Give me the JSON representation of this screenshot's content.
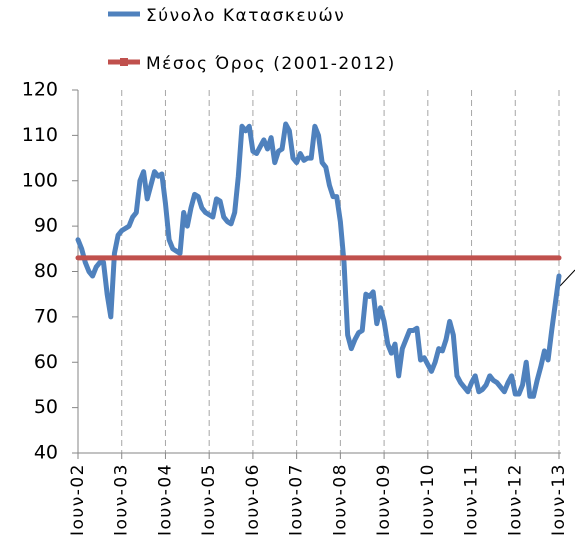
{
  "chart_data": {
    "type": "line",
    "categories": [
      "Ιουν-02",
      null,
      null,
      null,
      null,
      null,
      null,
      null,
      null,
      null,
      null,
      null,
      "Ιουν-03",
      null,
      null,
      null,
      null,
      null,
      null,
      null,
      null,
      null,
      null,
      null,
      "Ιουν-04",
      null,
      null,
      null,
      null,
      null,
      null,
      null,
      null,
      null,
      null,
      null,
      "Ιουν-05",
      null,
      null,
      null,
      null,
      null,
      null,
      null,
      null,
      null,
      null,
      null,
      "Ιουν-06",
      null,
      null,
      null,
      null,
      null,
      null,
      null,
      null,
      null,
      null,
      null,
      "Ιουν-07",
      null,
      null,
      null,
      null,
      null,
      null,
      null,
      null,
      null,
      null,
      null,
      "Ιουν-08",
      null,
      null,
      null,
      null,
      null,
      null,
      null,
      null,
      null,
      null,
      null,
      "Ιουν-09",
      null,
      null,
      null,
      null,
      null,
      null,
      null,
      null,
      null,
      null,
      null,
      "Ιουν-10",
      null,
      null,
      null,
      null,
      null,
      null,
      null,
      null,
      null,
      null,
      null,
      "Ιουν-11",
      null,
      null,
      null,
      null,
      null,
      null,
      null,
      null,
      null,
      null,
      null,
      "Ιουν-12",
      null,
      null,
      null,
      null,
      null,
      null,
      null,
      null,
      null,
      null,
      null,
      "Ιουν-13"
    ],
    "series": [
      {
        "name": "Σύνολο Κατασκευών",
        "color": "#4f81bd",
        "values": [
          87,
          85,
          82,
          80,
          79,
          81,
          82,
          82,
          75,
          70,
          84,
          88,
          89,
          89.5,
          90,
          92,
          93,
          100,
          102,
          96,
          99,
          102,
          101,
          101.5,
          95,
          87,
          85,
          84.5,
          84,
          93,
          90,
          94,
          97,
          96.5,
          94,
          93,
          92.5,
          92,
          96,
          95.5,
          92,
          91,
          90.5,
          93,
          101,
          112,
          111,
          112,
          106.5,
          106,
          107.5,
          109,
          107,
          109.5,
          104,
          106.5,
          107,
          112.5,
          111,
          105,
          104,
          106,
          104.5,
          105,
          105,
          112,
          110,
          104,
          103,
          99,
          96.5,
          96.5,
          91,
          82,
          66,
          63,
          65,
          66.5,
          67,
          75,
          74.5,
          75.5,
          68.5,
          72,
          69,
          64,
          62,
          64,
          57,
          63,
          65,
          67,
          67,
          67.5,
          60.5,
          61,
          59.5,
          58,
          60,
          63,
          62.5,
          65,
          69,
          66,
          57,
          55.5,
          54.5,
          53.5,
          55.5,
          57,
          53.5,
          54,
          55,
          57,
          56,
          55.5,
          54.5,
          53.5,
          55.5,
          57,
          53,
          53,
          55,
          60,
          52.5,
          52.5,
          56,
          59,
          62.5,
          60.5,
          67,
          73,
          79
        ]
      },
      {
        "name": "Μέσος Όρος (2001-2012)",
        "color": "#c0504d",
        "values": [
          83,
          83,
          83,
          83,
          83,
          83,
          83,
          83,
          83,
          83,
          83,
          83,
          83,
          83,
          83,
          83,
          83,
          83,
          83,
          83,
          83,
          83,
          83,
          83,
          83,
          83,
          83,
          83,
          83,
          83,
          83,
          83,
          83,
          83,
          83,
          83,
          83,
          83,
          83,
          83,
          83,
          83,
          83,
          83,
          83,
          83,
          83,
          83,
          83,
          83,
          83,
          83,
          83,
          83,
          83,
          83,
          83,
          83,
          83,
          83,
          83,
          83,
          83,
          83,
          83,
          83,
          83,
          83,
          83,
          83,
          83,
          83,
          83,
          83,
          83,
          83,
          83,
          83,
          83,
          83,
          83,
          83,
          83,
          83,
          83,
          83,
          83,
          83,
          83,
          83,
          83,
          83,
          83,
          83,
          83,
          83,
          83,
          83,
          83,
          83,
          83,
          83,
          83,
          83,
          83,
          83,
          83,
          83,
          83,
          83,
          83,
          83,
          83,
          83,
          83,
          83,
          83,
          83,
          83,
          83,
          83,
          83,
          83,
          83,
          83,
          83,
          83,
          83,
          83,
          83,
          83,
          83,
          83
        ]
      }
    ],
    "ylim": [
      40,
      120
    ],
    "yticks": [
      40,
      50,
      60,
      70,
      80,
      90,
      100,
      110,
      120
    ],
    "grid": true
  }
}
